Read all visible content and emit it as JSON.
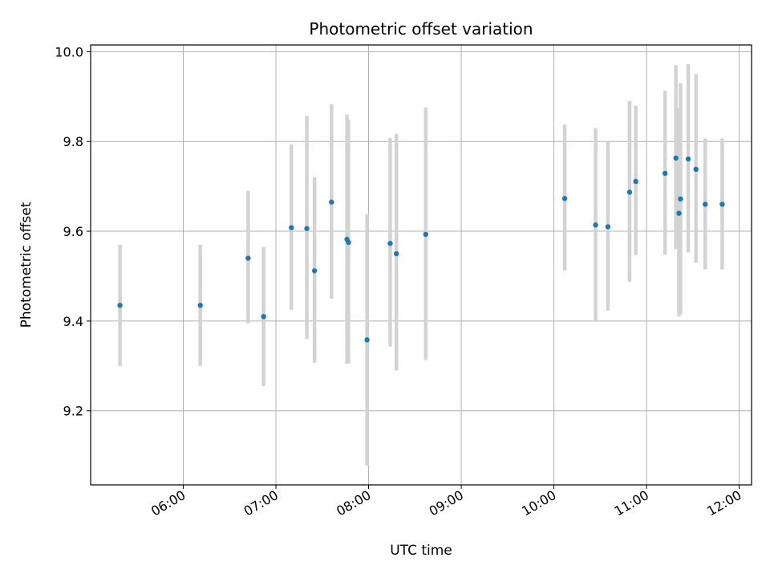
{
  "chart_data": {
    "type": "scatter",
    "title": "Photometric offset variation",
    "xlabel": "UTC time",
    "ylabel": "Photometric offset",
    "x_ticks": [
      "06:00",
      "07:00",
      "08:00",
      "09:00",
      "10:00",
      "11:00",
      "12:00"
    ],
    "y_ticks": [
      "9.2",
      "9.4",
      "9.6",
      "9.8",
      "10.0"
    ],
    "xlim": [
      "05:00",
      "12:08"
    ],
    "ylim": [
      9.035,
      10.015
    ],
    "grid": true,
    "colors": {
      "point": "#1f77b4",
      "errorbar": "#d3d3d3",
      "grid": "#b0b0b0",
      "axis": "#000000"
    },
    "points": [
      {
        "x": "05:19",
        "y": 9.435,
        "low": 9.3,
        "high": 9.57
      },
      {
        "x": "06:11",
        "y": 9.435,
        "low": 9.3,
        "high": 9.57
      },
      {
        "x": "06:42",
        "y": 9.54,
        "low": 9.395,
        "high": 9.69
      },
      {
        "x": "06:52",
        "y": 9.41,
        "low": 9.255,
        "high": 9.565
      },
      {
        "x": "07:10",
        "y": 9.608,
        "low": 9.425,
        "high": 9.793
      },
      {
        "x": "07:20",
        "y": 9.606,
        "low": 9.36,
        "high": 9.857
      },
      {
        "x": "07:25",
        "y": 9.512,
        "low": 9.307,
        "high": 9.72
      },
      {
        "x": "07:36",
        "y": 9.665,
        "low": 9.45,
        "high": 9.883
      },
      {
        "x": "07:46",
        "y": 9.582,
        "low": 9.305,
        "high": 9.86
      },
      {
        "x": "07:47",
        "y": 9.575,
        "low": 9.305,
        "high": 9.848
      },
      {
        "x": "07:59",
        "y": 9.358,
        "low": 9.078,
        "high": 9.638
      },
      {
        "x": "08:14",
        "y": 9.573,
        "low": 9.343,
        "high": 9.808
      },
      {
        "x": "08:18",
        "y": 9.55,
        "low": 9.29,
        "high": 9.817
      },
      {
        "x": "08:37",
        "y": 9.593,
        "low": 9.313,
        "high": 9.876
      },
      {
        "x": "10:07",
        "y": 9.673,
        "low": 9.513,
        "high": 9.838
      },
      {
        "x": "10:27",
        "y": 9.614,
        "low": 9.4,
        "high": 9.83
      },
      {
        "x": "10:35",
        "y": 9.61,
        "low": 9.423,
        "high": 9.8
      },
      {
        "x": "10:49",
        "y": 9.687,
        "low": 9.487,
        "high": 9.89
      },
      {
        "x": "10:53",
        "y": 9.711,
        "low": 9.547,
        "high": 9.88
      },
      {
        "x": "11:12",
        "y": 9.729,
        "low": 9.548,
        "high": 9.913
      },
      {
        "x": "11:19",
        "y": 9.763,
        "low": 9.56,
        "high": 9.97
      },
      {
        "x": "11:21",
        "y": 9.64,
        "low": 9.41,
        "high": 9.875
      },
      {
        "x": "11:22",
        "y": 9.672,
        "low": 9.415,
        "high": 9.93
      },
      {
        "x": "11:27",
        "y": 9.761,
        "low": 9.553,
        "high": 9.972
      },
      {
        "x": "11:32",
        "y": 9.738,
        "low": 9.53,
        "high": 9.95
      },
      {
        "x": "11:38",
        "y": 9.66,
        "low": 9.515,
        "high": 9.807
      },
      {
        "x": "11:49",
        "y": 9.66,
        "low": 9.515,
        "high": 9.807
      }
    ]
  }
}
